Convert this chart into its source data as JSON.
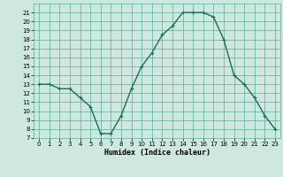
{
  "x": [
    0,
    1,
    2,
    3,
    4,
    5,
    6,
    7,
    8,
    9,
    10,
    11,
    12,
    13,
    14,
    15,
    16,
    17,
    18,
    19,
    20,
    21,
    22,
    23
  ],
  "y": [
    13,
    13,
    12.5,
    12.5,
    11.5,
    10.5,
    7.5,
    7.5,
    9.5,
    12.5,
    15,
    16.5,
    18.5,
    19.5,
    21,
    21,
    21,
    20.5,
    18,
    14,
    13,
    11.5,
    9.5,
    8
  ],
  "line_color": "#1a6b5e",
  "marker": "+",
  "background_color": "#cce8e0",
  "grid_color": "#5aab9a",
  "xlabel": "Humidex (Indice chaleur)",
  "xlim": [
    -0.5,
    23.5
  ],
  "ylim": [
    7,
    22
  ],
  "yticks": [
    7,
    8,
    9,
    10,
    11,
    12,
    13,
    14,
    15,
    16,
    17,
    18,
    19,
    20,
    21
  ],
  "xticks": [
    0,
    1,
    2,
    3,
    4,
    5,
    6,
    7,
    8,
    9,
    10,
    11,
    12,
    13,
    14,
    15,
    16,
    17,
    18,
    19,
    20,
    21,
    22,
    23
  ]
}
